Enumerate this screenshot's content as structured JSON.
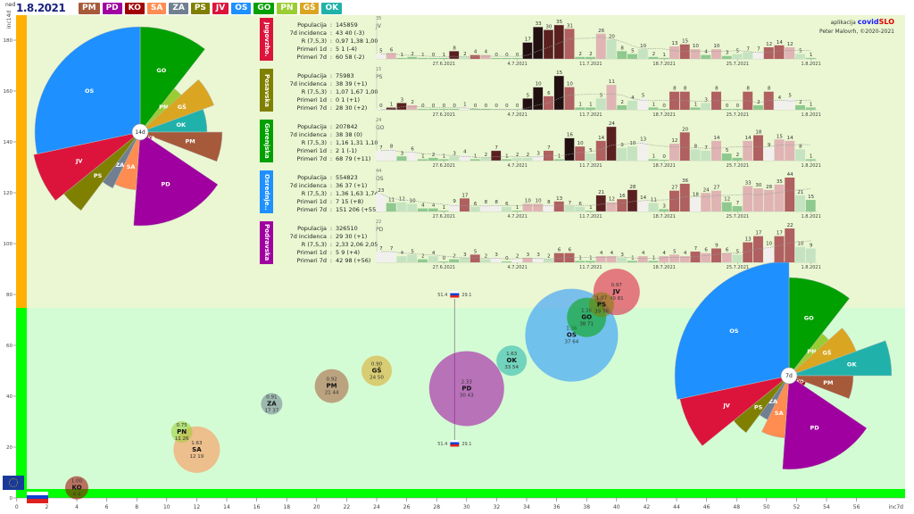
{
  "header": {
    "day": "ned",
    "date": "1.8.2021"
  },
  "legend": [
    {
      "code": "PM",
      "color": "#a65a3a"
    },
    {
      "code": "PD",
      "color": "#a000a0"
    },
    {
      "code": "KO",
      "color": "#a00000"
    },
    {
      "code": "SA",
      "color": "#ff8c50"
    },
    {
      "code": "ZA",
      "color": "#708090"
    },
    {
      "code": "PS",
      "color": "#808000"
    },
    {
      "code": "JV",
      "color": "#dc143c"
    },
    {
      "code": "OS",
      "color": "#1e90ff"
    },
    {
      "code": "GO",
      "color": "#00a000"
    },
    {
      "code": "PN",
      "color": "#9acd32"
    },
    {
      "code": "GŠ",
      "color": "#daa520"
    },
    {
      "code": "OK",
      "color": "#20b2aa"
    }
  ],
  "credits": {
    "prefix": "aplikacija",
    "name_a": "covid",
    "name_b": "SLO",
    "author": "Peter Malovrh, ©2020-2021"
  },
  "chart_data": {
    "type": "scatter",
    "x_label": "inc7d",
    "y_label": "inc14d",
    "xlim": [
      0,
      59
    ],
    "ylim": [
      0,
      180
    ],
    "x_ticks": [
      "0",
      "2",
      "4",
      "6",
      "8",
      "10",
      "12",
      "14",
      "16",
      "18",
      "20",
      "22",
      "24",
      "26",
      "28",
      "30",
      "32",
      "34",
      "36",
      "38",
      "40",
      "42",
      "44",
      "46",
      "48",
      "50",
      "52",
      "54",
      "56"
    ],
    "y_ticks": [
      "0",
      "20",
      "40",
      "60",
      "80",
      "100",
      "120",
      "140",
      "160",
      "180"
    ],
    "zone_boundary_y": 75,
    "slo_marker": {
      "x": 29.2,
      "top_left": "51.4",
      "top_right": "29.1",
      "bottom_left": "51.4",
      "bottom_right": "29.1"
    },
    "bubbles": [
      {
        "code": "OS",
        "R": "1.36",
        "x": 37,
        "y": 64,
        "label": "37 64"
      },
      {
        "code": "PD",
        "R": "2.33",
        "x": 30,
        "y": 43,
        "label": "30 43"
      },
      {
        "code": "SA",
        "R": "1.63",
        "x": 12,
        "y": 19,
        "label": "12 19"
      },
      {
        "code": "JV",
        "R": "0.97",
        "x": 40,
        "y": 81,
        "label": "40 81"
      },
      {
        "code": "GO",
        "R": "1.16",
        "x": 38,
        "y": 71,
        "label": "38 71"
      },
      {
        "code": "PM",
        "R": "0.92",
        "x": 21,
        "y": 44,
        "label": "21 44"
      },
      {
        "code": "OK",
        "R": "1.63",
        "x": 33,
        "y": 54,
        "label": "33 54"
      },
      {
        "code": "GŠ",
        "R": "0.90",
        "x": 24,
        "y": 50,
        "label": "24 50"
      },
      {
        "code": "PS",
        "R": "1.07",
        "x": 39,
        "y": 76,
        "label": "39 76"
      },
      {
        "code": "KO",
        "R": "1.00",
        "x": 4,
        "y": 4,
        "label": "4 4"
      },
      {
        "code": "ZA",
        "R": "0.91",
        "x": 17,
        "y": 37,
        "label": "17 37"
      },
      {
        "code": "PN",
        "R": "0.75",
        "x": 11,
        "y": 26,
        "label": "11 26"
      }
    ],
    "pies": [
      {
        "label": "14d",
        "slices": [
          {
            "code": "GO",
            "deg": 38,
            "size": 118
          },
          {
            "code": "PN",
            "deg": 10,
            "size": 62
          },
          {
            "code": "GŠ",
            "deg": 22,
            "size": 88
          },
          {
            "code": "OK",
            "deg": 20,
            "size": 75
          },
          {
            "code": "PM",
            "deg": 21,
            "size": 92
          },
          {
            "code": "KO",
            "deg": 13,
            "size": 15
          },
          {
            "code": "PD",
            "deg": 60,
            "size": 105
          },
          {
            "code": "SA",
            "deg": 22,
            "size": 65
          },
          {
            "code": "ZA",
            "deg": 11,
            "size": 70
          },
          {
            "code": "PS",
            "deg": 14,
            "size": 110
          },
          {
            "code": "JV",
            "deg": 27,
            "size": 122
          },
          {
            "code": "OS",
            "deg": 102,
            "size": 118
          }
        ]
      },
      {
        "label": "7d",
        "slices": [
          {
            "code": "GO",
            "deg": 38,
            "size": 110
          },
          {
            "code": "PN",
            "deg": 10,
            "size": 60
          },
          {
            "code": "GŠ",
            "deg": 22,
            "size": 80
          },
          {
            "code": "OK",
            "deg": 20,
            "size": 115
          },
          {
            "code": "PM",
            "deg": 21,
            "size": 72
          },
          {
            "code": "KO",
            "deg": 13,
            "size": 20
          },
          {
            "code": "PD",
            "deg": 60,
            "size": 105
          },
          {
            "code": "SA",
            "deg": 22,
            "size": 70
          },
          {
            "code": "ZA",
            "deg": 11,
            "size": 55
          },
          {
            "code": "PS",
            "deg": 14,
            "size": 80
          },
          {
            "code": "JV",
            "deg": 27,
            "size": 125
          },
          {
            "code": "OS",
            "deg": 102,
            "size": 128
          }
        ]
      }
    ]
  },
  "bar_dates": [
    {
      "i": 6,
      "t": "27.6.2021"
    },
    {
      "i": 13,
      "t": "4.7.2021"
    },
    {
      "i": 20,
      "t": "11.7.2021"
    },
    {
      "i": 27,
      "t": "18.7.2021"
    },
    {
      "i": 34,
      "t": "25.7.2021"
    },
    {
      "i": 41,
      "t": "1.8.2021"
    }
  ],
  "panels": [
    {
      "name": "Jugovzho.",
      "code": "JV",
      "color": "#dc143c",
      "max": "35",
      "stats": [
        {
          "l": "Populacija",
          "v": "145859"
        },
        {
          "l": "7d incidenca",
          "v": "43 40 (-3)"
        },
        {
          "l": "R (7,5,3)",
          "v": "0,97 1,38 1,00"
        },
        {
          "l": "Primeri 1d",
          "v": "5 1 (-4)"
        },
        {
          "l": "Primeri 7d",
          "v": "60 58 (-2)"
        }
      ],
      "bars": [
        "5",
        "6",
        "1",
        "2",
        "1",
        "0",
        "1",
        "8",
        "2",
        "4",
        "4",
        "0",
        "0",
        "0",
        "17",
        "33",
        "30",
        "35",
        "31",
        "2",
        "2",
        "26",
        "20",
        "8",
        "5",
        "10",
        "2",
        "1",
        "13",
        "15",
        "10",
        "4",
        "10",
        "3",
        "5",
        "7",
        "7",
        "12",
        "14",
        "12",
        "5",
        "1"
      ]
    },
    {
      "name": "Posavska",
      "code": "PS",
      "color": "#808000",
      "max": "15",
      "stats": [
        {
          "l": "Populacija",
          "v": "75983"
        },
        {
          "l": "7d incidenca",
          "v": "38 39 (+1)"
        },
        {
          "l": "R (7,5,3)",
          "v": "1,07 1,67 1,00"
        },
        {
          "l": "Primeri 1d",
          "v": "0 1 (+1)"
        },
        {
          "l": "Primeri 7d",
          "v": "28 30 (+2)"
        }
      ],
      "bars": [
        "0",
        "1",
        "3",
        "2",
        "0",
        "0",
        "0",
        "0",
        "1",
        "0",
        "0",
        "0",
        "0",
        "0",
        "5",
        "10",
        "6",
        "15",
        "10",
        "1",
        "1",
        "5",
        "11",
        "2",
        "4",
        "5",
        "1",
        "0",
        "8",
        "8",
        "1",
        "3",
        "8",
        "0",
        "0",
        "8",
        "2",
        "8",
        "4",
        "5",
        "2",
        "1"
      ]
    },
    {
      "name": "Gorenjska",
      "code": "GO",
      "color": "#00a000",
      "max": "24",
      "stats": [
        {
          "l": "Populacija",
          "v": "207842"
        },
        {
          "l": "7d incidenca",
          "v": "38 38 (0)"
        },
        {
          "l": "R (7,5,3)",
          "v": "1,16 1,31 1,10"
        },
        {
          "l": "Primeri 1d",
          "v": "2 1 (-1)"
        },
        {
          "l": "Primeri 7d",
          "v": "68 79 (+11)"
        }
      ],
      "bars": [
        "7",
        "8",
        "3",
        "6",
        "1",
        "2",
        "1",
        "3",
        "4",
        "1",
        "2",
        "7",
        "1",
        "2",
        "2",
        "3",
        "7",
        "1",
        "16",
        "10",
        "5",
        "14",
        "24",
        "9",
        "10",
        "13",
        "1",
        "0",
        "12",
        "20",
        "8",
        "7",
        "14",
        "5",
        "2",
        "14",
        "18",
        "9",
        "15",
        "14",
        "8",
        "1"
      ]
    },
    {
      "name": "Osrednje..",
      "code": "OS",
      "color": "#1e90ff",
      "max": "44",
      "stats": [
        {
          "l": "Populacija",
          "v": "554823"
        },
        {
          "l": "7d incidenca",
          "v": "36 37 (+1)"
        },
        {
          "l": "R (7,5,3)",
          "v": "1,36 1,63 1,74"
        },
        {
          "l": "Primeri 1d",
          "v": "7 15 (+8)"
        },
        {
          "l": "Primeri 7d",
          "v": "151 206 (+55)"
        }
      ],
      "bars": [
        "23",
        "11",
        "12",
        "10",
        "4",
        "4",
        "1",
        "9",
        "17",
        "6",
        "8",
        "8",
        "6",
        "1",
        "10",
        "10",
        "8",
        "13",
        "7",
        "6",
        "1",
        "21",
        "12",
        "16",
        "28",
        "14",
        "11",
        "3",
        "27",
        "36",
        "18",
        "24",
        "27",
        "12",
        "7",
        "33",
        "30",
        "28",
        "35",
        "44",
        "21",
        "15"
      ]
    },
    {
      "name": "Podravska",
      "code": "PD",
      "color": "#a000a0",
      "max": "22",
      "stats": [
        {
          "l": "Populacija",
          "v": "326510"
        },
        {
          "l": "7d incidenca",
          "v": "29 30 (+1)"
        },
        {
          "l": "R (7,5,3)",
          "v": "2,33 2,06 2,05"
        },
        {
          "l": "Primeri 1d",
          "v": "5 9 (+4)"
        },
        {
          "l": "Primeri 7d",
          "v": "42 98 (+56)"
        }
      ],
      "bars": [
        "7",
        "7",
        "4",
        "5",
        "2",
        "4",
        "0",
        "2",
        "3",
        "5",
        "2",
        "3",
        "0",
        "2",
        "3",
        "3",
        "2",
        "6",
        "6",
        "1",
        "1",
        "4",
        "4",
        "3",
        "1",
        "4",
        "1",
        "4",
        "5",
        "4",
        "7",
        "6",
        "9",
        "6",
        "5",
        "13",
        "17",
        "10",
        "17",
        "22",
        "10",
        "9"
      ]
    }
  ]
}
